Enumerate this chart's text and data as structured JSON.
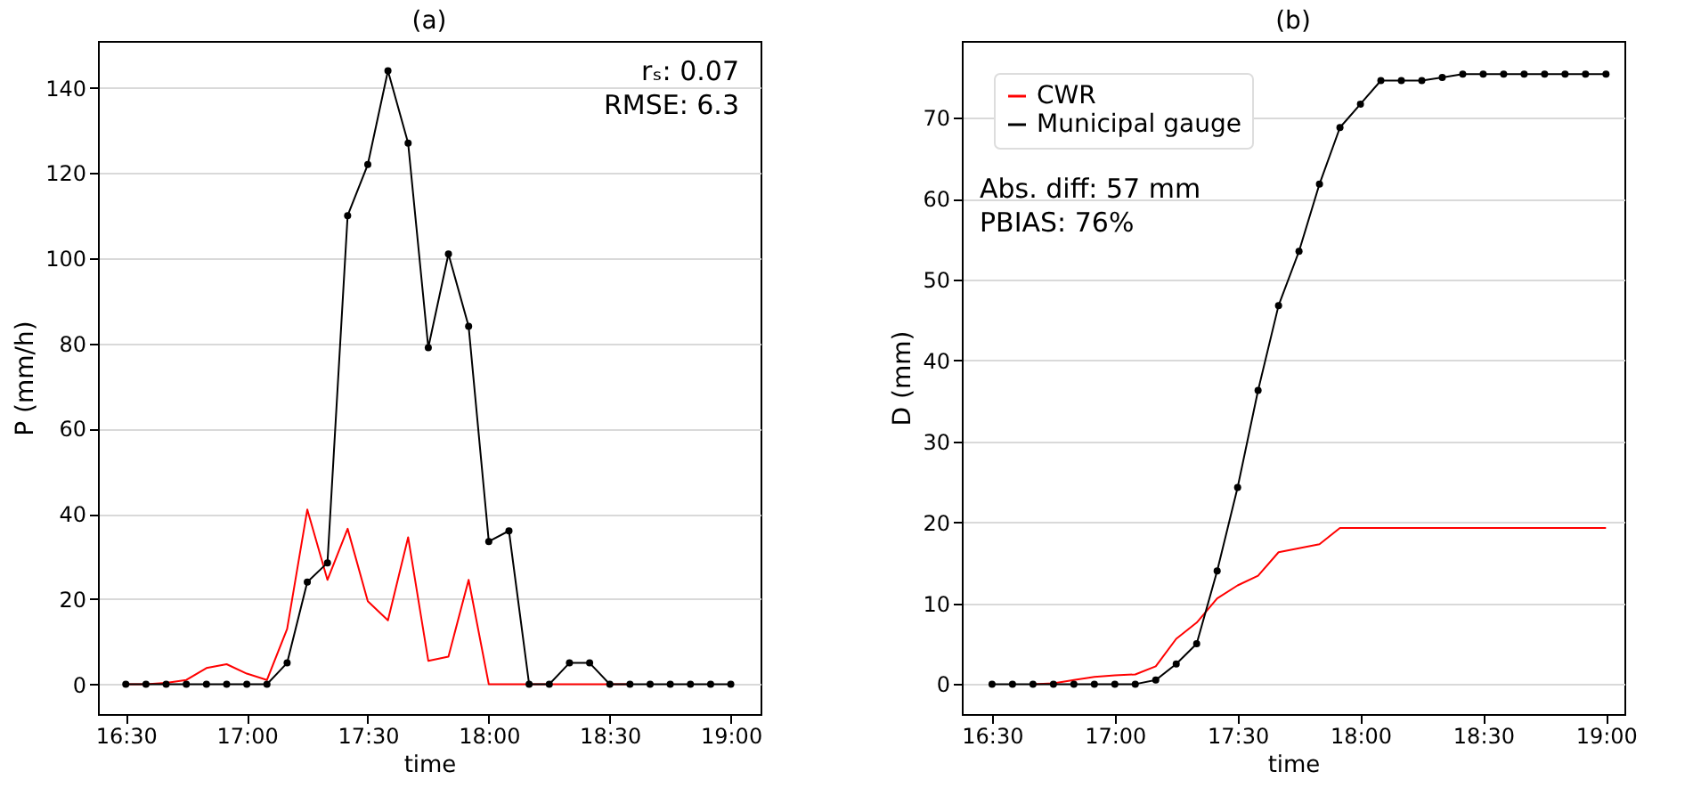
{
  "chart_data": [
    {
      "type": "line",
      "title": "(a)",
      "xlabel": "time",
      "ylabel": "P  (mm/h)",
      "x": [
        16.5,
        16.5833,
        16.6667,
        16.75,
        16.8333,
        16.9167,
        17,
        17.0833,
        17.1667,
        17.25,
        17.3333,
        17.4167,
        17.5,
        17.5833,
        17.6667,
        17.75,
        17.8333,
        17.9167,
        18,
        18.0833,
        18.1667,
        18.25,
        18.3333,
        18.4167,
        18.5,
        18.5833,
        18.6667,
        18.75,
        18.8333,
        18.9167,
        19
      ],
      "series": [
        {
          "color": "#ff0000",
          "values": [
            0,
            0,
            0.3,
            1,
            3.8,
            4.7,
            2.5,
            1,
            13,
            41,
            24.5,
            36.5,
            19.5,
            15,
            34.5,
            5.5,
            6.5,
            24.5,
            0,
            0,
            0,
            0,
            0,
            0,
            0,
            0,
            null,
            null,
            null,
            null,
            null
          ]
        },
        {
          "color": "#000000",
          "marker": "circle",
          "values": [
            0,
            0,
            0,
            0,
            0,
            0,
            0,
            0,
            5,
            24,
            28.5,
            110,
            122,
            144,
            127,
            79,
            101,
            84,
            33.5,
            36,
            0,
            0,
            5,
            5,
            0,
            0,
            0,
            0,
            0,
            0,
            0
          ]
        }
      ],
      "xlim": [
        16.385,
        19.123
      ],
      "xticks": [
        {
          "value": 16.5,
          "label": "16:30"
        },
        {
          "value": 17,
          "label": "17:00"
        },
        {
          "value": 17.5,
          "label": "17:30"
        },
        {
          "value": 18,
          "label": "18:00"
        },
        {
          "value": 18.5,
          "label": "18:30"
        },
        {
          "value": 19,
          "label": "19:00"
        }
      ],
      "ylim": [
        -7,
        151
      ],
      "yticks": [
        0,
        20,
        40,
        60,
        80,
        100,
        120,
        140
      ],
      "grid": "y",
      "annotations": [
        "rₛ: 0.07",
        "RMSE: 6.3"
      ]
    },
    {
      "type": "line",
      "title": "(b)",
      "xlabel": "time",
      "ylabel": "D  (mm)",
      "x": [
        16.5,
        16.5833,
        16.6667,
        16.75,
        16.8333,
        16.9167,
        17,
        17.0833,
        17.1667,
        17.25,
        17.3333,
        17.4167,
        17.5,
        17.5833,
        17.6667,
        17.75,
        17.8333,
        17.9167,
        18,
        18.0833,
        18.1667,
        18.25,
        18.3333,
        18.4167,
        18.5,
        18.5833,
        18.6667,
        18.75,
        18.8333,
        18.9167,
        19
      ],
      "series": [
        {
          "name": "CWR",
          "color": "#ff0000",
          "values": [
            null,
            null,
            0,
            0.1,
            0.5,
            0.9,
            1.1,
            1.2,
            2.2,
            5.6,
            7.6,
            10.6,
            12.2,
            13.4,
            16.3,
            16.8,
            17.3,
            19.3,
            19.3,
            19.3,
            19.3,
            19.3,
            19.3,
            19.3,
            19.3,
            19.3,
            19.3,
            19.3,
            19.3,
            19.3,
            19.3
          ]
        },
        {
          "name": "Municipal gauge",
          "color": "#000000",
          "marker": "circle",
          "values": [
            0,
            0,
            0,
            0,
            0,
            0,
            0,
            0,
            0.5,
            2.5,
            5,
            14,
            24.3,
            36.3,
            46.8,
            53.5,
            61.8,
            68.8,
            71.7,
            74.6,
            74.6,
            74.6,
            75,
            75.4,
            75.4,
            75.4,
            75.4,
            75.4,
            75.4,
            75.4,
            75.4
          ]
        }
      ],
      "xlim": [
        16.377,
        19.075
      ],
      "xticks": [
        {
          "value": 16.5,
          "label": "16:30"
        },
        {
          "value": 17,
          "label": "17:00"
        },
        {
          "value": 17.5,
          "label": "17:30"
        },
        {
          "value": 18,
          "label": "18:00"
        },
        {
          "value": 18.5,
          "label": "18:30"
        },
        {
          "value": 19,
          "label": "19:00"
        }
      ],
      "ylim": [
        -3.7,
        79.5
      ],
      "yticks": [
        0,
        10,
        20,
        30,
        40,
        50,
        60,
        70
      ],
      "grid": "y",
      "legend": "top left",
      "annotations": [
        "Abs. diff: 57 mm",
        "PBIAS: 76%"
      ]
    }
  ]
}
